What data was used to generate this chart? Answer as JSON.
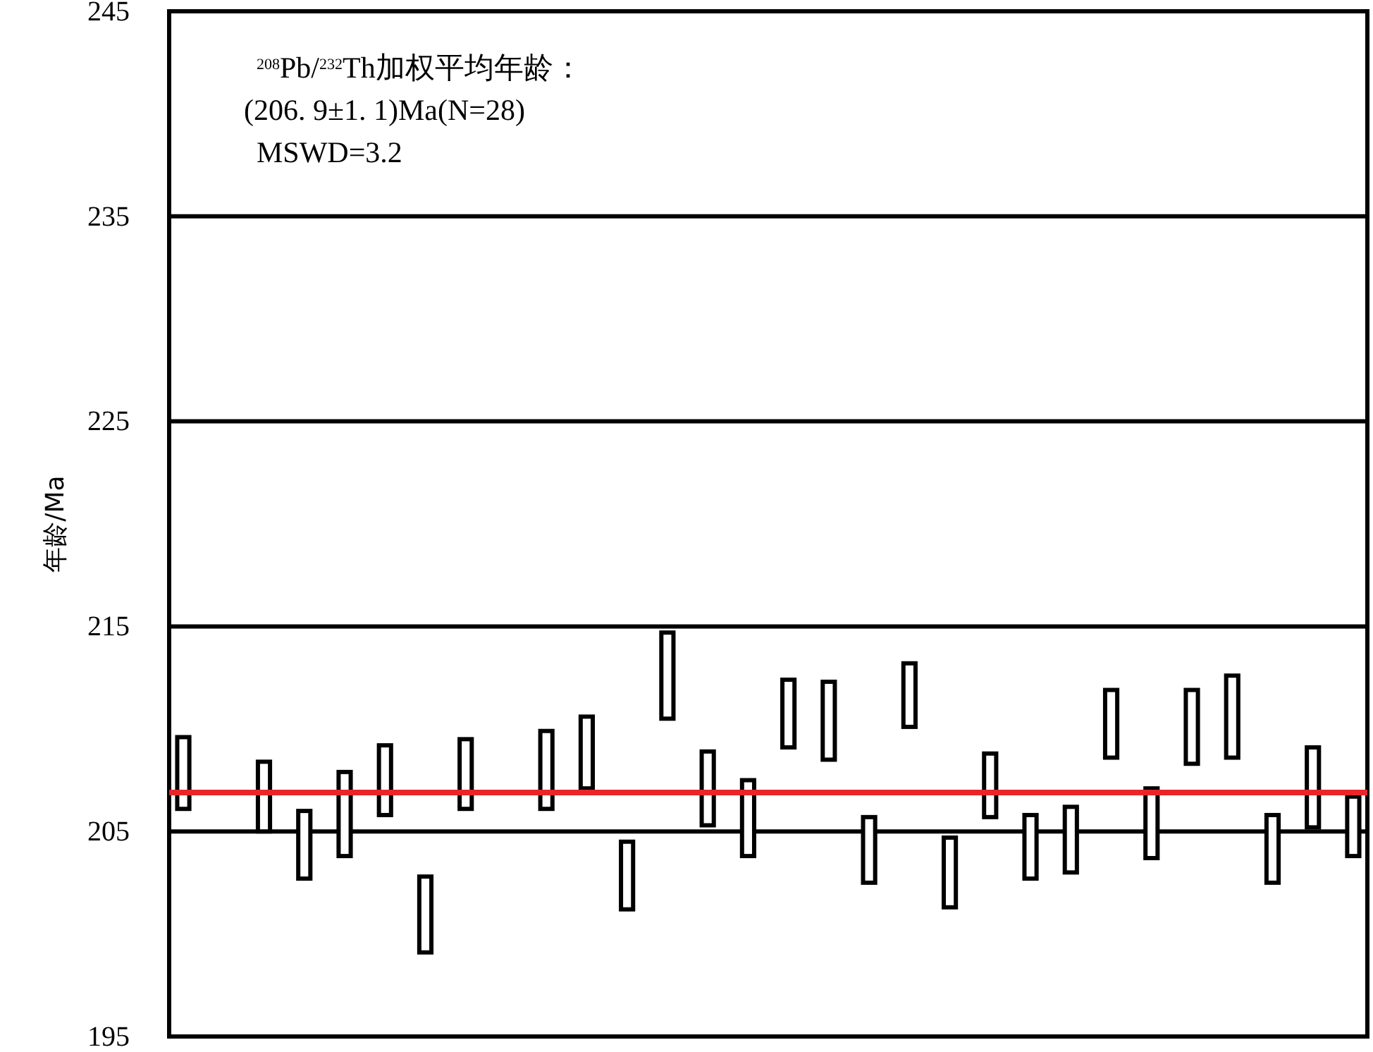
{
  "chart_data": {
    "type": "bar",
    "ylabel": "年龄/Ma",
    "annotations": [
      "$^{208}$Pb/$^{232}$Th加权平均年龄：",
      "(206. 9±1. 1)Ma(N=28)",
      "MSWD=3.2"
    ],
    "categories": [
      null,
      null,
      null,
      null,
      null,
      null,
      null,
      null,
      null,
      null,
      null,
      null,
      null,
      null,
      null,
      null,
      null,
      null,
      null,
      null,
      null,
      null,
      null,
      null,
      null,
      null,
      null,
      null,
      null,
      null
    ],
    "base": [
      206.1,
      null,
      205.0,
      202.7,
      203.8,
      205.8,
      199.1,
      206.1,
      null,
      206.1,
      207.1,
      201.2,
      210.5,
      205.3,
      203.8,
      209.1,
      208.5,
      202.5,
      210.1,
      201.3,
      205.7,
      202.7,
      203.0,
      208.6,
      203.7,
      208.3,
      208.6,
      202.5,
      205.2,
      203.8
    ],
    "values": [
      3.5,
      null,
      3.4,
      3.3,
      4.1,
      3.4,
      3.7,
      3.4,
      null,
      3.8,
      3.5,
      3.3,
      4.2,
      3.6,
      3.7,
      3.3,
      3.8,
      3.2,
      3.1,
      3.4,
      3.1,
      3.1,
      3.2,
      3.3,
      3.4,
      3.6,
      4.0,
      3.3,
      3.9,
      2.9
    ],
    "color": "#000000",
    "ylim": [
      195,
      245
    ],
    "yticks": [
      195,
      205,
      215,
      225,
      235,
      245
    ],
    "grid": "y",
    "tick_labels": "y",
    "ref_lines": [
      {
        "axis": "y",
        "value": 206.9,
        "color": "#e8262a"
      }
    ]
  }
}
